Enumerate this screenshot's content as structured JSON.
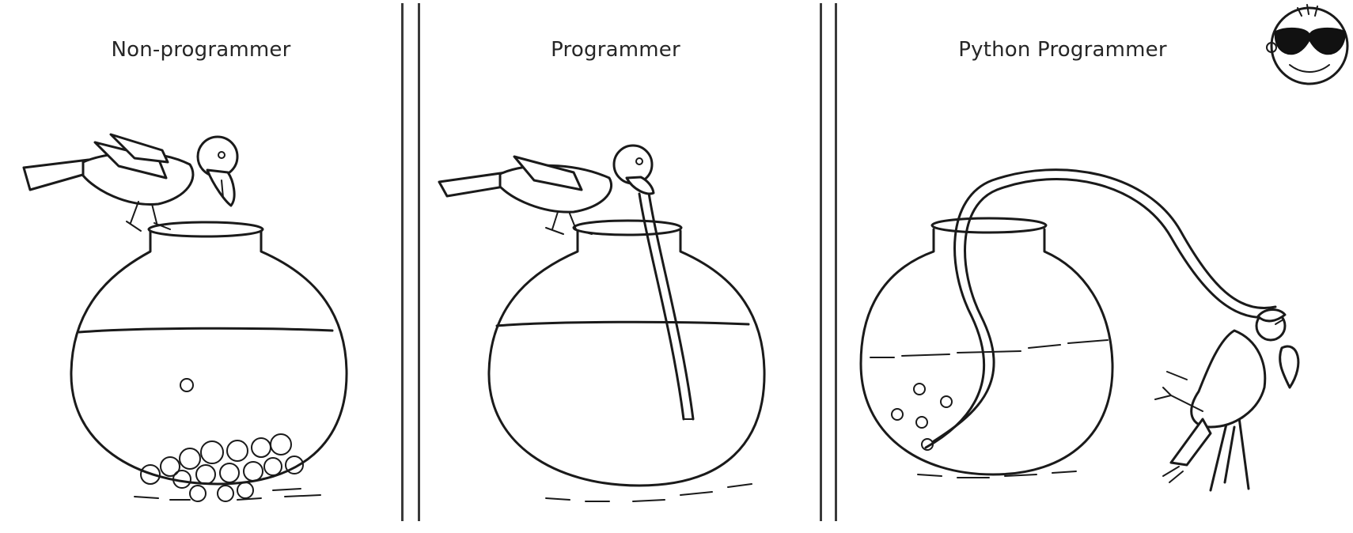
{
  "panels": [
    {
      "title": "Non-programmer"
    },
    {
      "title": "Programmer"
    },
    {
      "title": "Python Programmer"
    }
  ]
}
